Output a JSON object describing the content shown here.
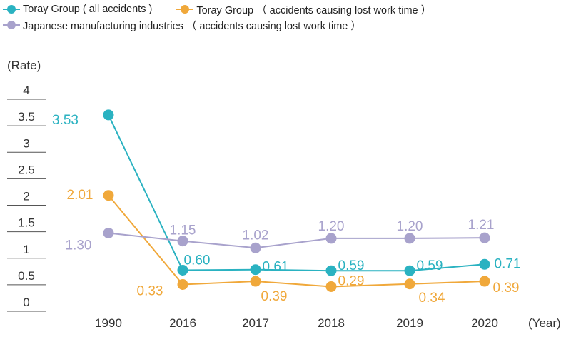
{
  "chart_data": {
    "type": "line",
    "title": "",
    "xlabel": "(Year)",
    "ylabel": "(Rate)",
    "categories": [
      "1990",
      "2016",
      "2017",
      "2018",
      "2019",
      "2020"
    ],
    "ylim": [
      0,
      4
    ],
    "yticks": [
      "0",
      "0.5",
      "1",
      "1.5",
      "2",
      "2.5",
      "3",
      "3.5",
      "4"
    ],
    "series": [
      {
        "name": "Toray Group ( all accidents )",
        "color": "#2ab2c1",
        "values": [
          3.53,
          0.6,
          0.61,
          0.59,
          0.59,
          0.71
        ],
        "labels": [
          "3.53",
          "0.60",
          "0.61",
          "0.59",
          "0.59",
          "0.71"
        ]
      },
      {
        "name": "Toray Group （ accidents causing lost work time ）",
        "color": "#f0a83a",
        "values": [
          2.01,
          0.33,
          0.39,
          0.29,
          0.34,
          0.39
        ],
        "labels": [
          "2.01",
          "0.33",
          "0.39",
          "0.29",
          "0.34",
          "0.39"
        ]
      },
      {
        "name": "Japanese manufacturing industries （ accidents causing lost work time ）",
        "color": "#a8a2cc",
        "values": [
          1.3,
          1.15,
          1.02,
          1.2,
          1.2,
          1.21
        ],
        "labels": [
          "1.30",
          "1.15",
          "1.02",
          "1.20",
          "1.20",
          "1.21"
        ]
      }
    ],
    "legend_position": "top-left"
  }
}
